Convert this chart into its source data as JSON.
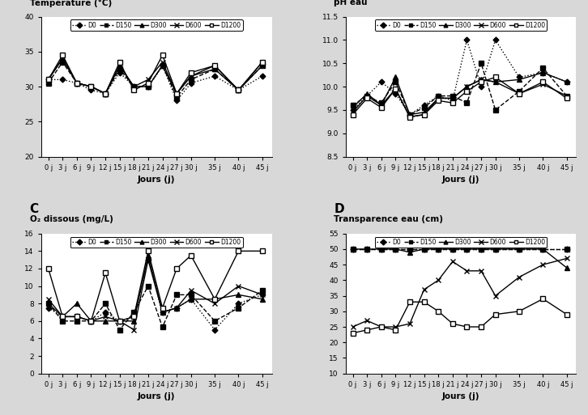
{
  "x_ticks": [
    0,
    3,
    6,
    9,
    12,
    15,
    18,
    21,
    24,
    27,
    30,
    35,
    40,
    45
  ],
  "x_labels": [
    "0 j",
    "3 j",
    "6 j",
    "9 j",
    "12 j",
    "15 j",
    "18 j",
    "21 j",
    "24 j",
    "27 j",
    "30 j",
    "35 j",
    "40 j",
    "45 j"
  ],
  "A_title": "Température (°C)",
  "A_ylim": [
    20,
    40
  ],
  "A_yticks": [
    20,
    25,
    30,
    35,
    40
  ],
  "A_D0": [
    31,
    31,
    30.5,
    29.5,
    29,
    32,
    30,
    30,
    33,
    28,
    30.5,
    31.5,
    29.5,
    31.5
  ],
  "A_D150": [
    30.5,
    33.5,
    30.5,
    30,
    29,
    32.5,
    30,
    30,
    33,
    28.5,
    31,
    32.5,
    29.5,
    33
  ],
  "A_D300": [
    31,
    34,
    30.5,
    30,
    29,
    33,
    30,
    30,
    33,
    29,
    31.5,
    32.5,
    29.5,
    33.5
  ],
  "A_D600": [
    31,
    34,
    30.5,
    30,
    29,
    33,
    30,
    31,
    33.5,
    29,
    31.5,
    33,
    29.5,
    33
  ],
  "A_D1200": [
    31,
    34.5,
    30.5,
    30,
    29,
    33.5,
    29.5,
    30.5,
    34.5,
    29,
    32,
    33,
    29.5,
    33.5
  ],
  "B_title": "pH eau",
  "B_ylim": [
    8.5,
    11.5
  ],
  "B_yticks": [
    8.5,
    9.0,
    9.5,
    10.0,
    10.5,
    11.0,
    11.5
  ],
  "B_D0": [
    9.5,
    9.8,
    10.1,
    9.85,
    9.4,
    9.6,
    9.8,
    9.7,
    11.0,
    10.0,
    11.0,
    10.2,
    10.3,
    10.1
  ],
  "B_D150": [
    9.6,
    9.8,
    9.65,
    10.1,
    9.4,
    9.55,
    9.8,
    9.8,
    9.65,
    10.5,
    9.5,
    9.9,
    10.4,
    9.8
  ],
  "B_D300": [
    9.55,
    9.85,
    9.6,
    10.2,
    9.4,
    9.45,
    9.75,
    9.75,
    10.0,
    10.15,
    10.1,
    10.15,
    10.3,
    10.1
  ],
  "B_D600": [
    9.45,
    9.8,
    9.6,
    9.95,
    9.35,
    9.4,
    9.75,
    9.75,
    10.0,
    10.15,
    10.1,
    9.85,
    10.05,
    9.8
  ],
  "B_D1200": [
    9.4,
    9.75,
    9.55,
    9.95,
    9.35,
    9.4,
    9.7,
    9.65,
    9.9,
    10.1,
    10.2,
    9.85,
    10.1,
    9.75
  ],
  "C_title": "O₂ dissous (mg/L)",
  "C_ylim": [
    0,
    16
  ],
  "C_yticks": [
    0,
    2,
    4,
    6,
    8,
    10,
    12,
    14,
    16
  ],
  "C_D0": [
    7.5,
    6.5,
    6.5,
    6.0,
    7.0,
    6.0,
    6.5,
    13.0,
    7.0,
    7.5,
    8.5,
    5.0,
    8.0,
    9.0
  ],
  "C_D150": [
    8.0,
    6.0,
    6.0,
    6.0,
    8.0,
    5.0,
    7.0,
    10.0,
    5.3,
    9.0,
    9.0,
    6.0,
    7.5,
    9.5
  ],
  "C_D300": [
    8.0,
    6.5,
    8.0,
    6.0,
    6.0,
    6.0,
    6.0,
    13.5,
    7.0,
    7.5,
    8.5,
    8.5,
    9.0,
    8.5
  ],
  "C_D600": [
    8.5,
    6.5,
    6.5,
    6.0,
    6.5,
    6.0,
    5.0,
    13.0,
    7.0,
    7.5,
    9.5,
    8.0,
    10.0,
    9.0
  ],
  "C_D1200": [
    12.0,
    6.5,
    6.5,
    6.0,
    11.5,
    6.0,
    6.5,
    14.0,
    7.5,
    12.0,
    13.5,
    8.5,
    14.0,
    14.0
  ],
  "D_title": "Transparence eau (cm)",
  "D_ylim": [
    10,
    55
  ],
  "D_yticks": [
    10,
    15,
    20,
    25,
    30,
    35,
    40,
    45,
    50,
    55
  ],
  "D_D0": [
    50,
    50,
    50,
    50,
    50,
    50,
    50,
    50,
    50,
    50,
    50,
    50,
    50,
    50
  ],
  "D_D150": [
    50,
    50,
    50,
    50,
    50,
    50,
    50,
    50,
    50,
    50,
    50,
    50,
    50,
    50
  ],
  "D_D300": [
    50,
    50,
    50,
    50,
    49,
    50,
    50,
    50,
    50,
    50,
    50,
    50,
    50,
    44
  ],
  "D_D600": [
    25,
    27,
    25,
    25,
    26,
    37,
    40,
    46,
    43,
    43,
    35,
    41,
    45,
    47
  ],
  "D_D1200": [
    23,
    24,
    25,
    24,
    33,
    33,
    30,
    26,
    25,
    25,
    29,
    30,
    34,
    29
  ],
  "bg_color": "#d8d8d8",
  "plot_bg": "#ffffff"
}
